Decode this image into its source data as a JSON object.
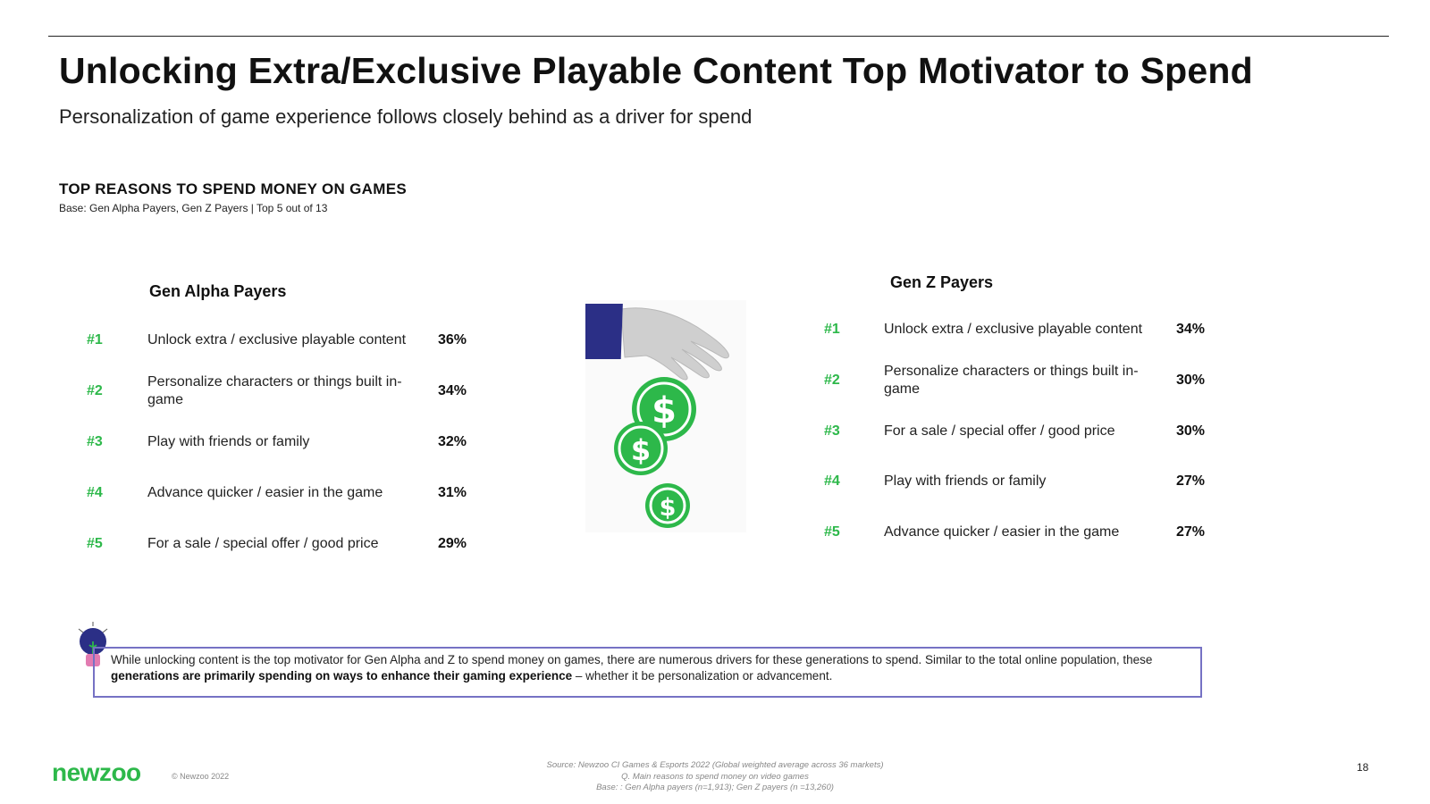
{
  "header": {
    "title": "Unlocking Extra/Exclusive Playable Content Top Motivator to Spend",
    "subtitle": "Personalization of game experience follows closely behind as a driver for spend"
  },
  "section": {
    "title": "TOP REASONS TO SPEND MONEY ON GAMES",
    "base": "Base: Gen Alpha Payers, Gen Z Payers | Top 5 out of 13"
  },
  "gen_alpha": {
    "heading": "Gen Alpha Payers",
    "rows": [
      {
        "rank": "#1",
        "label": "Unlock extra / exclusive playable content",
        "pct": "36%"
      },
      {
        "rank": "#2",
        "label": "Personalize characters or things built in-game",
        "pct": "34%"
      },
      {
        "rank": "#3",
        "label": "Play with friends or family",
        "pct": "32%"
      },
      {
        "rank": "#4",
        "label": "Advance quicker / easier in the game",
        "pct": "31%"
      },
      {
        "rank": "#5",
        "label": "For a sale / special offer / good price",
        "pct": "29%"
      }
    ]
  },
  "gen_z": {
    "heading": "Gen Z Payers",
    "rows": [
      {
        "rank": "#1",
        "label": "Unlock extra / exclusive playable content",
        "pct": "34%"
      },
      {
        "rank": "#2",
        "label": "Personalize characters or things built in-game",
        "pct": "30%"
      },
      {
        "rank": "#3",
        "label": "For a sale / special offer / good price",
        "pct": "30%"
      },
      {
        "rank": "#4",
        "label": "Play with friends or family",
        "pct": "27%"
      },
      {
        "rank": "#5",
        "label": "Advance quicker / easier in the game",
        "pct": "27%"
      }
    ]
  },
  "insight": {
    "text_before": "While unlocking content is the top motivator for Gen Alpha and Z to spend money on games, there are numerous drivers for these generations to spend. Similar to the total online population, these ",
    "text_bold": "generations are primarily spending on ways to enhance their gaming experience",
    "text_after": " – whether it be personalization or advancement."
  },
  "footer": {
    "logo": "newzoo",
    "copyright": "© Newzoo 2022",
    "source_line1": "Source: Newzoo CI Games & Esports 2022 (Global weighted average across 36 markets)",
    "source_line2": "Q. Main reasons to spend money on video games",
    "source_line3": "Base: : Gen Alpha payers (n=1,913); Gen Z payers (n =13,260)",
    "page_number": "18"
  },
  "colors": {
    "accent_green": "#2db84a",
    "box_border": "#7672c4",
    "sleeve_navy": "#2b2f86"
  }
}
